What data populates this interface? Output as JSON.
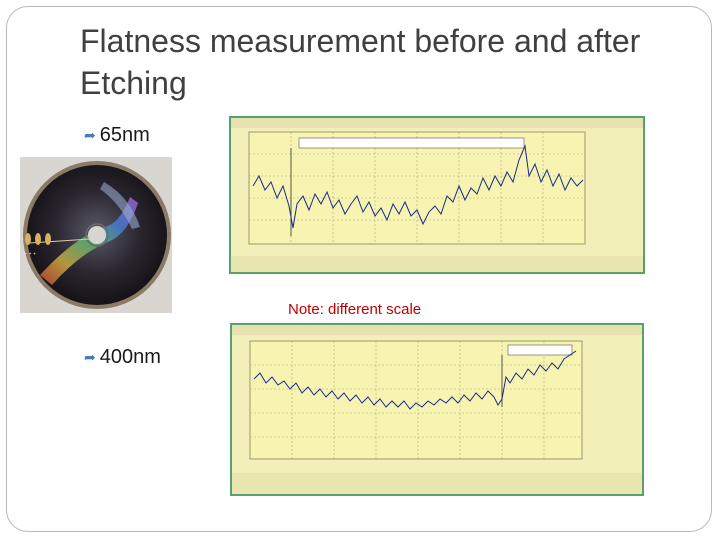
{
  "slide": {
    "title": "Flatness measurement before and after Etching",
    "bullets": [
      {
        "label": "65nm"
      },
      {
        "label": "400nm"
      }
    ],
    "note": "Note: different scale"
  },
  "colors": {
    "title": "#404040",
    "note": "#c00000",
    "graph_bg": "#f7f3b0",
    "trace": "#1c2a8c",
    "border_green": "#5aa06a"
  }
}
